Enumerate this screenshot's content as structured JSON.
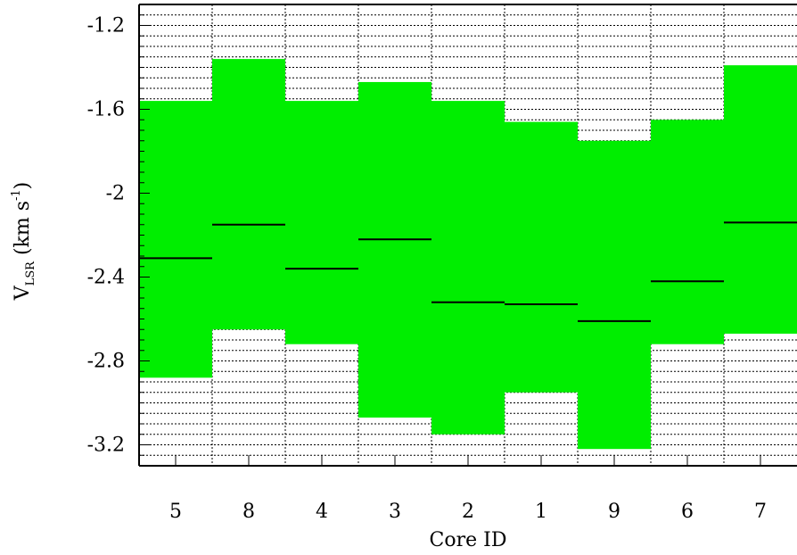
{
  "chart_data": {
    "type": "bar",
    "categories": [
      "5",
      "8",
      "4",
      "3",
      "2",
      "1",
      "9",
      "6",
      "7"
    ],
    "series": [
      {
        "values": [
          [
            -2.88,
            -1.56
          ],
          [
            -2.65,
            -1.36
          ],
          [
            -2.72,
            -1.56
          ],
          [
            -3.07,
            -1.47
          ],
          [
            -3.15,
            -1.56
          ],
          [
            -2.95,
            -1.66
          ],
          [
            -3.22,
            -1.75
          ],
          [
            -2.72,
            -1.65
          ],
          [
            -2.67,
            -1.39
          ]
        ]
      },
      {
        "values": [
          -2.31,
          -2.15,
          -2.36,
          -2.22,
          -2.52,
          -2.53,
          -2.61,
          -2.42,
          -2.14
        ]
      }
    ],
    "xlabel": "Core ID",
    "ylabel": {
      "main": "V",
      "sub": "LSR",
      "unit_prefix": " (km s",
      "sup": "-1",
      "unit_suffix": ")"
    },
    "yticks": [
      "-1.2",
      "-1.6",
      "-2",
      "-2.4",
      "-2.8",
      "-3.2"
    ],
    "ylim": [
      -3.3,
      -1.1
    ],
    "grid": true,
    "colors": {
      "fill": "#00ee00",
      "marker": "#000000",
      "grid": "#000000"
    }
  }
}
